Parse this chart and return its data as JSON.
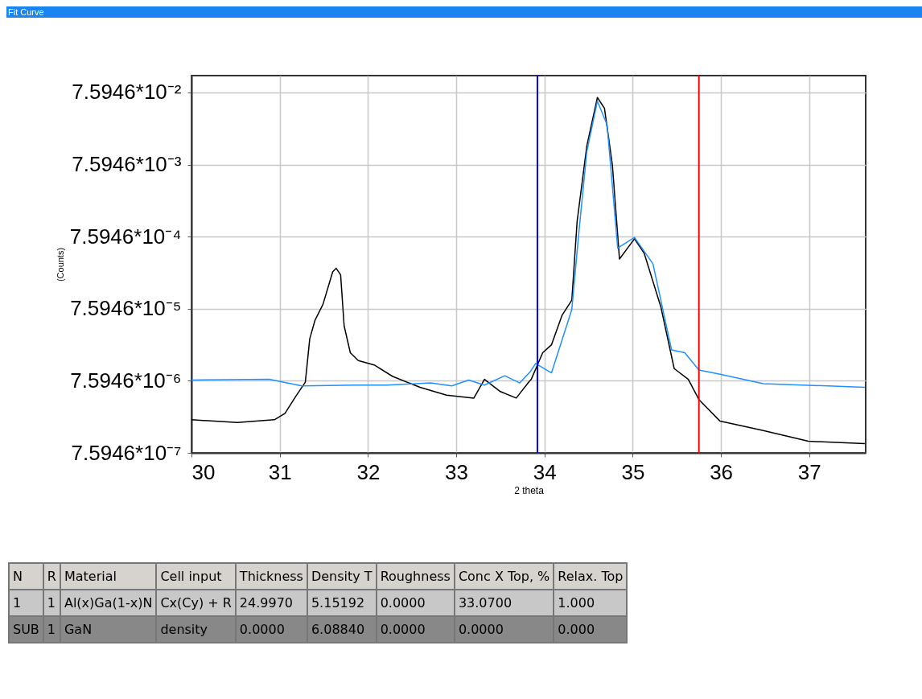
{
  "chart_data": {
    "type": "line",
    "title": "Fit Curve",
    "xlabel": "2 theta",
    "ylabel": "(Counts)",
    "log": "y",
    "grid": true,
    "marker": "none",
    "xlim": [
      30,
      37.64
    ],
    "xticks": [
      30,
      31,
      32,
      33,
      34,
      35,
      36,
      37
    ],
    "ylim": [
      7.5946e-07,
      0.13
    ],
    "yticks": [
      {
        "value": 7.5946e-07,
        "label": "7.5946*10⁻⁷"
      },
      {
        "value": 7.5946e-06,
        "label": "7.5946*10⁻⁶"
      },
      {
        "value": 7.5946e-05,
        "label": "7.5946*10⁻⁵"
      },
      {
        "value": 0.00075946,
        "label": "7.5946*10⁻⁴"
      },
      {
        "value": 0.0075946,
        "label": "7.5946*10⁻³"
      },
      {
        "value": 0.075946,
        "label": "7.5946*10⁻²"
      }
    ],
    "series": [
      {
        "color": "#000000",
        "x": [
          30.0,
          30.52,
          30.94,
          31.06,
          31.19,
          31.29,
          31.34,
          31.4,
          31.49,
          31.6,
          31.64,
          31.69,
          31.73,
          31.8,
          31.89,
          32.07,
          32.28,
          32.59,
          32.89,
          33.2,
          33.32,
          33.5,
          33.68,
          33.82,
          33.85,
          33.98,
          34.08,
          34.2,
          34.31,
          34.37,
          34.48,
          34.6,
          34.68,
          34.77,
          34.85,
          35.02,
          35.13,
          35.32,
          35.47,
          35.63,
          35.75,
          35.99,
          36.48,
          36.99,
          37.63
        ],
        "values": [
          2.19e-06,
          2e-06,
          2.19e-06,
          2.69e-06,
          4.79e-06,
          7.25e-06,
          2.89e-05,
          5.26e-05,
          8.72e-05,
          0.000246,
          0.000276,
          0.000224,
          4.37e-05,
          1.86e-05,
          1.45e-05,
          1.26e-05,
          8.72e-06,
          6.17e-06,
          4.79e-06,
          4.37e-06,
          7.95e-06,
          5.38e-06,
          4.37e-06,
          7.25e-06,
          7.95e-06,
          1.86e-05,
          2.4e-05,
          6.17e-05,
          0.0001,
          0.00123,
          0.0138,
          0.0646,
          0.0458,
          0.00742,
          0.000372,
          0.000709,
          0.000447,
          7.95e-05,
          1.12e-05,
          7.95e-06,
          4.17e-06,
          2.09e-06,
          1.55e-06,
          1.1e-06,
          1.02e-06
        ]
      },
      {
        "color": "#1e90ff",
        "x": [
          30.0,
          30.88,
          31.25,
          31.86,
          32.22,
          32.71,
          32.95,
          33.14,
          33.32,
          33.55,
          33.72,
          33.84,
          33.9,
          34.08,
          34.31,
          34.39,
          34.48,
          34.6,
          34.71,
          34.83,
          35.02,
          35.23,
          35.44,
          35.59,
          35.75,
          35.99,
          36.48,
          37.63
        ],
        "values": [
          7.77e-06,
          7.95e-06,
          6.46e-06,
          6.62e-06,
          6.62e-06,
          7.09e-06,
          6.46e-06,
          7.77e-06,
          6.62e-06,
          8.92e-06,
          7.09e-06,
          1.02e-05,
          1.32e-05,
          9.78e-06,
          7.42e-05,
          0.000872,
          0.0115,
          0.0576,
          0.0269,
          0.000526,
          0.000742,
          0.000317,
          2.04e-05,
          1.86e-05,
          1.07e-05,
          9.34e-06,
          6.93e-06,
          6.17e-06
        ]
      }
    ],
    "ref_lines": [
      {
        "axis": "x",
        "value": 33.92,
        "color": "#0000ff"
      },
      {
        "axis": "x",
        "value": 35.75,
        "color": "#ff0000"
      }
    ],
    "annotations": [
      "N",
      "R",
      "Material",
      "Cell input",
      "Thickness",
      "Density T",
      "Roughness",
      "Conc X Top, %",
      "Relax. Top",
      "1",
      "1",
      "Al(x)Ga(1-x)N",
      "Cx(Cy) + R",
      "24.9970",
      "5.15192",
      "0.0000",
      "33.0700",
      "1.000",
      "SUB",
      "1",
      "GaN",
      "density",
      "0.0000",
      "6.08840",
      "0.0000",
      "0.0000",
      "0.000"
    ]
  }
}
